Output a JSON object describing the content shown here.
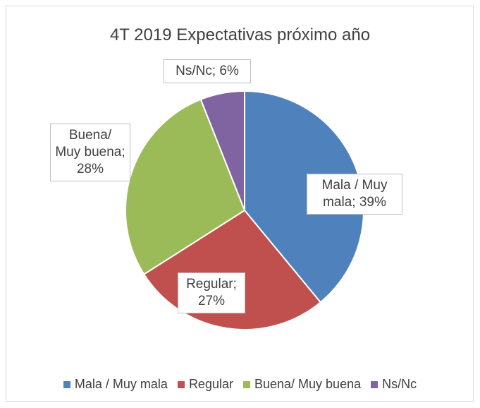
{
  "chart_data": {
    "type": "pie",
    "title": "4T 2019 Expectativas próximo año",
    "categories": [
      "Mala / Muy mala",
      "Regular",
      "Buena/ Muy buena",
      "Ns/Nc"
    ],
    "values": [
      39,
      27,
      28,
      6
    ],
    "value_labels": [
      "Mala / Muy mala; 39%",
      "Regular; 27%",
      "Buena/ Muy buena; 28%",
      "Ns/Nc; 6%"
    ],
    "colors": [
      "#4f81bd",
      "#c0504d",
      "#9bbb59",
      "#8064a2"
    ],
    "legend": "bottom"
  }
}
